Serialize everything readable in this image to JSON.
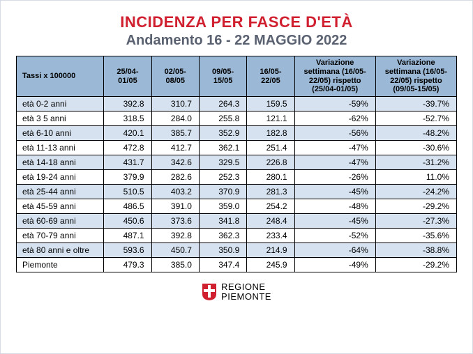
{
  "title": "INCIDENZA PER FASCE D'ETÀ",
  "subtitle": "Andamento 16 - 22 MAGGIO 2022",
  "table": {
    "type": "table",
    "header_bg": "#9bb9d6",
    "alt_row_bg": "#d6e2ef",
    "row_bg": "#ffffff",
    "border_color": "#000000",
    "font_size_header": 11,
    "font_size_body": 12,
    "columns": [
      {
        "key": "label",
        "header": "Tassi x 100000",
        "width": 110,
        "align": "left"
      },
      {
        "key": "w1",
        "header": "25/04-01/05",
        "width": 60,
        "align": "right"
      },
      {
        "key": "w2",
        "header": "02/05-08/05",
        "width": 60,
        "align": "right"
      },
      {
        "key": "w3",
        "header": "09/05-15/05",
        "width": 60,
        "align": "right"
      },
      {
        "key": "w4",
        "header": "16/05-22/05",
        "width": 60,
        "align": "right"
      },
      {
        "key": "v1",
        "header": "Variazione settimana (16/05-22/05) rispetto (25/04-01/05)",
        "width": 102,
        "align": "right"
      },
      {
        "key": "v2",
        "header": "Variazione settimana (16/05-22/05) rispetto (09/05-15/05)",
        "width": 102,
        "align": "right"
      }
    ],
    "rows": [
      {
        "label": "età 0-2 anni",
        "w1": "392.8",
        "w2": "310.7",
        "w3": "264.3",
        "w4": "159.5",
        "v1": "-59%",
        "v2": "-39.7%",
        "alt": true
      },
      {
        "label": "età 3 5 anni",
        "w1": "318.5",
        "w2": "284.0",
        "w3": "255.8",
        "w4": "121.1",
        "v1": "-62%",
        "v2": "-52.7%",
        "alt": false
      },
      {
        "label": "età 6-10 anni",
        "w1": "420.1",
        "w2": "385.7",
        "w3": "352.9",
        "w4": "182.8",
        "v1": "-56%",
        "v2": "-48.2%",
        "alt": true
      },
      {
        "label": "età 11-13 anni",
        "w1": "472.8",
        "w2": "412.7",
        "w3": "362.1",
        "w4": "251.4",
        "v1": "-47%",
        "v2": "-30.6%",
        "alt": false
      },
      {
        "label": "età 14-18 anni",
        "w1": "431.7",
        "w2": "342.6",
        "w3": "329.5",
        "w4": "226.8",
        "v1": "-47%",
        "v2": "-31.2%",
        "alt": true
      },
      {
        "label": "età 19-24 anni",
        "w1": "379.9",
        "w2": "282.6",
        "w3": "252.3",
        "w4": "280.1",
        "v1": "-26%",
        "v2": "11.0%",
        "alt": false
      },
      {
        "label": "età 25-44 anni",
        "w1": "510.5",
        "w2": "403.2",
        "w3": "370.9",
        "w4": "281.3",
        "v1": "-45%",
        "v2": "-24.2%",
        "alt": true
      },
      {
        "label": "età 45-59 anni",
        "w1": "486.5",
        "w2": "391.0",
        "w3": "359.0",
        "w4": "254.2",
        "v1": "-48%",
        "v2": "-29.2%",
        "alt": false
      },
      {
        "label": "età 60-69 anni",
        "w1": "450.6",
        "w2": "373.6",
        "w3": "341.8",
        "w4": "248.4",
        "v1": "-45%",
        "v2": "-27.3%",
        "alt": true
      },
      {
        "label": "età 70-79 anni",
        "w1": "487.1",
        "w2": "392.8",
        "w3": "362.3",
        "w4": "233.4",
        "v1": "-52%",
        "v2": "-35.6%",
        "alt": false
      },
      {
        "label": "età 80 anni e oltre",
        "w1": "593.6",
        "w2": "450.7",
        "w3": "350.9",
        "w4": "214.9",
        "v1": "-64%",
        "v2": "-38.8%",
        "alt": true
      }
    ],
    "total_row": {
      "label": "Piemonte",
      "w1": "479.3",
      "w2": "385.0",
      "w3": "347.4",
      "w4": "245.9",
      "v1": "-49%",
      "v2": "-29.2%"
    }
  },
  "brand": {
    "line1": "REGIONE",
    "line2": "PIEMONTE",
    "shield_color": "#d01f2e",
    "cross_color": "#ffffff"
  },
  "colors": {
    "title": "#d01f2e",
    "subtitle": "#5a6170",
    "page_border": "#d7dbe6",
    "background": "#ffffff"
  }
}
